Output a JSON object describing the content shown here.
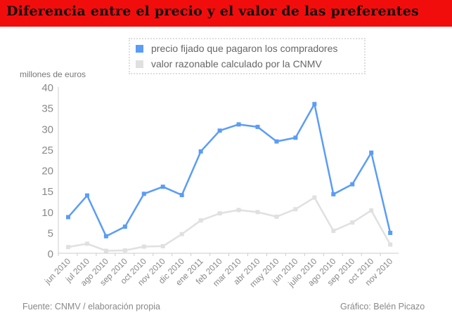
{
  "title": "Diferencia entre el precio y el valor de las preferentes",
  "footer": {
    "source": "Fuente: CNMV / elaboración propia",
    "credit": "Gráfico: Belén Picazo"
  },
  "chart_data": {
    "type": "line",
    "title": "Diferencia entre el precio y el valor de las preferentes",
    "ylabel": "millones de euros",
    "xlabel": "",
    "ylim": [
      0,
      40
    ],
    "yticks": [
      0,
      5,
      10,
      15,
      20,
      25,
      30,
      35,
      40
    ],
    "legend_position": "top",
    "grid": false,
    "categories": [
      "jun 2010",
      "jul 2010",
      "ago 2010",
      "sep 2010",
      "oct 2010",
      "nov 2010",
      "dic 2010",
      "ene 2011",
      "feb 2010",
      "mar 2010",
      "abr 2010",
      "may 2010",
      "jun 2010",
      "julio 2010",
      "ago 2010",
      "sep 2010",
      "oct 2010",
      "nov 2010"
    ],
    "series": [
      {
        "name": "precio fijado que pagaron los compradores",
        "color": "#5b9cf6",
        "values": [
          8.7,
          13.9,
          4.1,
          6.4,
          14.3,
          16.0,
          14.0,
          24.5,
          29.5,
          31.0,
          30.4,
          26.9,
          27.8,
          35.9,
          14.2,
          16.6,
          24.2,
          4.9
        ]
      },
      {
        "name": "valor razonable calculado por la CNMV",
        "color": "#e0e0e0",
        "values": [
          1.5,
          2.3,
          0.6,
          0.7,
          1.6,
          1.7,
          4.6,
          7.9,
          9.6,
          10.4,
          9.9,
          8.8,
          10.6,
          13.4,
          5.4,
          7.4,
          10.3,
          2.1
        ]
      }
    ]
  }
}
